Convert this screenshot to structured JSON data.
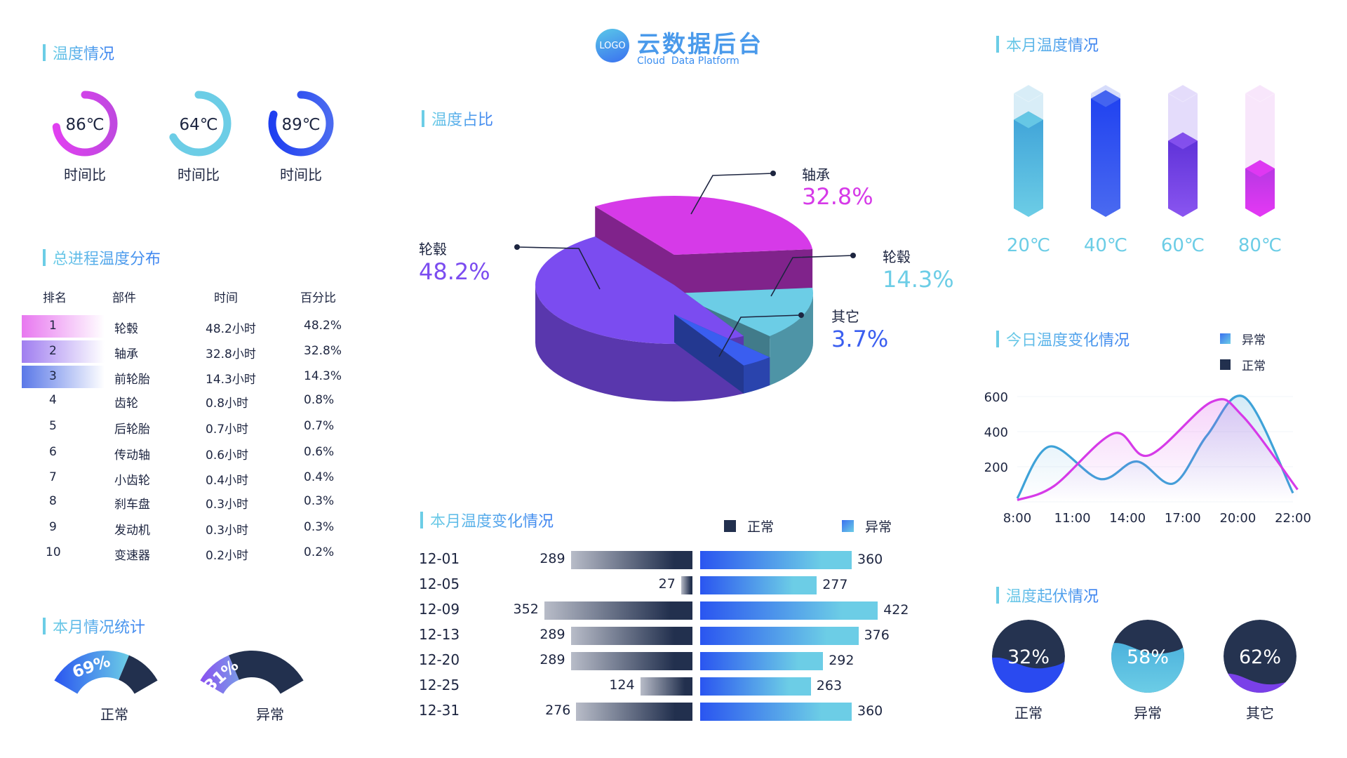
{
  "header": {
    "logo_text": "LOGO",
    "title": "云数据后台",
    "subtitle": "Cloud  Data Platform"
  },
  "temp_status": {
    "title": "温度情况",
    "gauges": [
      {
        "value": "86℃",
        "label": "时间比",
        "progress": 0.73,
        "colors": [
          "#e040f0",
          "#c048e0"
        ]
      },
      {
        "value": "64℃",
        "label": "时间比",
        "progress": 0.67,
        "colors": [
          "#6ccde6",
          "#6ccde6"
        ]
      },
      {
        "value": "89℃",
        "label": "时间比",
        "progress": 0.8,
        "colors": [
          "#1e3ef0",
          "#4a6af0"
        ]
      }
    ]
  },
  "distribution": {
    "title": "总进程温度分布",
    "columns": [
      "排名",
      "部件",
      "时间",
      "百分比"
    ],
    "rows": [
      [
        "1",
        "轮毂",
        "48.2小时",
        "48.2%"
      ],
      [
        "2",
        "轴承",
        "32.8小时",
        "32.8%"
      ],
      [
        "3",
        "前轮胎",
        "14.3小时",
        "14.3%"
      ],
      [
        "4",
        "齿轮",
        "0.8小时",
        "0.8%"
      ],
      [
        "5",
        "后轮胎",
        "0.7小时",
        "0.7%"
      ],
      [
        "6",
        "传动轴",
        "0.6小时",
        "0.6%"
      ],
      [
        "7",
        "小齿轮",
        "0.4小时",
        "0.4%"
      ],
      [
        "8",
        "刹车盘",
        "0.3小时",
        "0.3%"
      ],
      [
        "9",
        "发动机",
        "0.3小时",
        "0.3%"
      ],
      [
        "10",
        "变速器",
        "0.2小时",
        "0.2%"
      ]
    ],
    "highlight_colors": [
      "#e878f0",
      "#a07ef0",
      "#5a78e8"
    ]
  },
  "monthly_stats": {
    "title": "本月情况统计",
    "gauges": [
      {
        "value": 0.69,
        "text": "69%",
        "label": "正常",
        "colors": [
          "#2a55f0",
          "#6ccde6"
        ]
      },
      {
        "value": 0.31,
        "text": "31%",
        "label": "异常",
        "colors": [
          "#8a50f0",
          "#7a9ae8"
        ]
      }
    ],
    "rest_color": "#22304e"
  },
  "pie": {
    "title": "温度占比",
    "chart_data": {
      "type": "pie",
      "slices": [
        {
          "name": "轮毂",
          "value": 48.2,
          "label": "48.2%",
          "color": "#7b4cf0"
        },
        {
          "name": "轴承",
          "value": 32.8,
          "label": "32.8%",
          "color": "#d63ae8"
        },
        {
          "name": "轮毂",
          "value": 14.3,
          "label": "14.3%",
          "color": "#6ccde6"
        },
        {
          "name": "其它",
          "value": 3.7,
          "label": "3.7%",
          "color": "#3a5ef0"
        }
      ]
    }
  },
  "monthly_change": {
    "title": "本月温度变化情况",
    "chart_data": {
      "type": "bar",
      "categories": [
        "12-01",
        "12-05",
        "12-09",
        "12-13",
        "12-20",
        "12-25",
        "12-31"
      ],
      "series": [
        {
          "name": "正常",
          "values": [
            289,
            27,
            352,
            289,
            289,
            124,
            276
          ],
          "color": "#22304e"
        },
        {
          "name": "异常",
          "values": [
            360,
            277,
            422,
            376,
            292,
            263,
            360
          ],
          "color": "#3a70f0"
        }
      ]
    }
  },
  "month_temp": {
    "title": "本月温度情况",
    "items": [
      {
        "label": "20℃",
        "level": 0.8,
        "colors": [
          "#3ea2d8",
          "#6ccde6",
          "#d8edf7"
        ]
      },
      {
        "label": "40℃",
        "level": 0.96,
        "colors": [
          "#1e40f0",
          "#4a6af0",
          "#d6dcfb"
        ]
      },
      {
        "label": "60℃",
        "level": 0.64,
        "colors": [
          "#5b2fd6",
          "#8a55f0",
          "#e4dcfb"
        ]
      },
      {
        "label": "80℃",
        "level": 0.43,
        "colors": [
          "#b038e0",
          "#e538f5",
          "#f8e6fb"
        ]
      }
    ]
  },
  "today_change": {
    "title": "今日温度变化情况",
    "legend": [
      {
        "name": "异常",
        "color": "#3a80f0"
      },
      {
        "name": "正常",
        "color": "#22304e"
      }
    ],
    "chart_data": {
      "type": "line",
      "x_ticks": [
        "8:00",
        "11:00",
        "14:00",
        "17:00",
        "20:00",
        "22:00"
      ],
      "y_ticks": [
        200,
        400,
        600
      ],
      "ylim": [
        0,
        600
      ],
      "smooth": true,
      "series": [
        {
          "color": "#3ea2d8",
          "points": [
            [
              "8:00",
              20
            ],
            [
              "9:45",
              315
            ],
            [
              "12:30",
              130
            ],
            [
              "14:30",
              230
            ],
            [
              "16:30",
              105
            ],
            [
              "18:20",
              380
            ],
            [
              "20:15",
              595
            ],
            [
              "22:00",
              50
            ]
          ]
        },
        {
          "color": "#d63ae8",
          "points": [
            [
              "8:00",
              10
            ],
            [
              "10:00",
              90
            ],
            [
              "13:15",
              390
            ],
            [
              "15:10",
              265
            ],
            [
              "18:35",
              570
            ],
            [
              "20:10",
              490
            ],
            [
              "22:10",
              70
            ]
          ]
        }
      ]
    }
  },
  "fluctuation": {
    "title": "温度起伏情况",
    "items": [
      {
        "text": "32%",
        "label": "正常",
        "fill": 0.42,
        "color": "#2a4af0"
      },
      {
        "text": "58%",
        "label": "异常",
        "fill": 0.62,
        "color": "#4ab0dc"
      },
      {
        "text": "62%",
        "label": "其它",
        "fill": 0.2,
        "color": "#7a40e8"
      }
    ]
  }
}
